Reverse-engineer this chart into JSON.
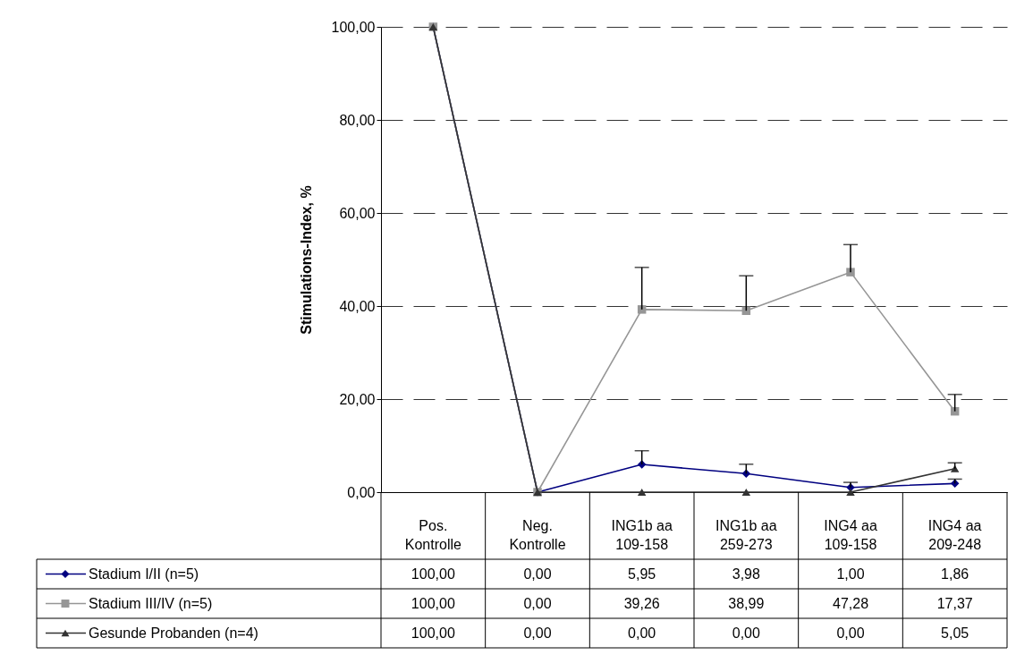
{
  "chart_data": {
    "type": "line",
    "ylabel": "Stimulations-Index, %",
    "categories": [
      "Pos. Kontrolle",
      "Neg. Kontrolle",
      "ING1b aa 109-158",
      "ING1b aa 259-273",
      "ING4 aa 109-158",
      "ING4 aa 209-248"
    ],
    "series": [
      {
        "name": "Stadium I/II (n=5)",
        "color": "#000080",
        "marker": "diamond",
        "values": [
          100,
          0,
          5.95,
          3.98,
          1.0,
          1.86
        ],
        "errors": [
          null,
          null,
          [
            5.95,
            8.9
          ],
          [
            3.98,
            6.0
          ],
          [
            1.0,
            2.1
          ],
          [
            1.86,
            2.8
          ]
        ],
        "value_labels": [
          "100,00",
          "0,00",
          "5,95",
          "3,98",
          "1,00",
          "1,86"
        ]
      },
      {
        "name": "Stadium III/IV (n=5)",
        "color": "#969696",
        "marker": "square",
        "values": [
          100,
          0,
          39.26,
          38.99,
          47.28,
          17.37
        ],
        "errors": [
          null,
          null,
          [
            39.26,
            48.3
          ],
          [
            38.99,
            46.5
          ],
          [
            47.28,
            53.2
          ],
          [
            17.37,
            21.0
          ]
        ],
        "value_labels": [
          "100,00",
          "0,00",
          "39,26",
          "38,99",
          "47,28",
          "17,37"
        ]
      },
      {
        "name": "Gesunde Probanden (n=4)",
        "color": "#333333",
        "marker": "triangle",
        "values": [
          100,
          0,
          0,
          0,
          0,
          5.05
        ],
        "errors": [
          null,
          null,
          null,
          null,
          null,
          [
            5.05,
            6.3
          ]
        ],
        "value_labels": [
          "100,00",
          "0,00",
          "0,00",
          "0,00",
          "0,00",
          "5,05"
        ]
      }
    ],
    "ylim": [
      0,
      100
    ],
    "yticks": [
      {
        "value": 0,
        "label": "0,00"
      },
      {
        "value": 20,
        "label": "20,00"
      },
      {
        "value": 40,
        "label": "40,00"
      },
      {
        "value": 60,
        "label": "60,00"
      },
      {
        "value": 80,
        "label": "80,00"
      },
      {
        "value": 100,
        "label": "100,00"
      }
    ],
    "grid": "y",
    "legend": "bottom",
    "line_style": "solid"
  }
}
